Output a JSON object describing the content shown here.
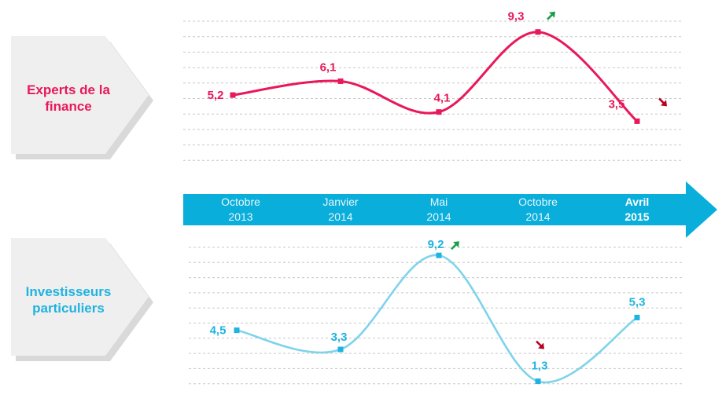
{
  "colors": {
    "finance": "#e8185a",
    "investors": "#1fb3df",
    "investors_line": "#7fd3ec",
    "arrow_band": "#0aaedb",
    "up_arrow": "#1a9e4a",
    "down_arrow": "#b8001f",
    "label_box": "#efefef"
  },
  "panels": {
    "finance_label": "Experts de la finance",
    "investors_label": "Investisseurs particuliers"
  },
  "timeline": [
    {
      "month": "Octobre",
      "year": "2013",
      "bold": false
    },
    {
      "month": "Janvier",
      "year": "2014",
      "bold": false
    },
    {
      "month": "Mai",
      "year": "2014",
      "bold": false
    },
    {
      "month": "Octobre",
      "year": "2014",
      "bold": false
    },
    {
      "month": "Avril",
      "year": "2015",
      "bold": true
    }
  ],
  "chart_data": [
    {
      "type": "line",
      "name": "Experts de la finance",
      "categories": [
        "Octobre 2013",
        "Janvier 2014",
        "Mai 2014",
        "Octobre 2014",
        "Avril 2015"
      ],
      "values": [
        5.2,
        6.1,
        4.1,
        9.3,
        3.5
      ],
      "labels": [
        "5,2",
        "6,1",
        "4,1",
        "9,3",
        "3,5"
      ],
      "trend_icons": [
        null,
        null,
        null,
        "up",
        "down"
      ],
      "ylim": [
        0,
        10
      ],
      "grid": true
    },
    {
      "type": "line",
      "name": "Investisseurs particuliers",
      "categories": [
        "Octobre 2013",
        "Janvier 2014",
        "Mai 2014",
        "Octobre 2014",
        "Avril 2015"
      ],
      "values": [
        4.5,
        3.3,
        9.2,
        1.3,
        5.3
      ],
      "labels": [
        "4,5",
        "3,3",
        "9,2",
        "1,3",
        "5,3"
      ],
      "trend_icons": [
        null,
        null,
        "up",
        "down",
        null
      ],
      "ylim": [
        0,
        10
      ],
      "grid": true
    }
  ]
}
